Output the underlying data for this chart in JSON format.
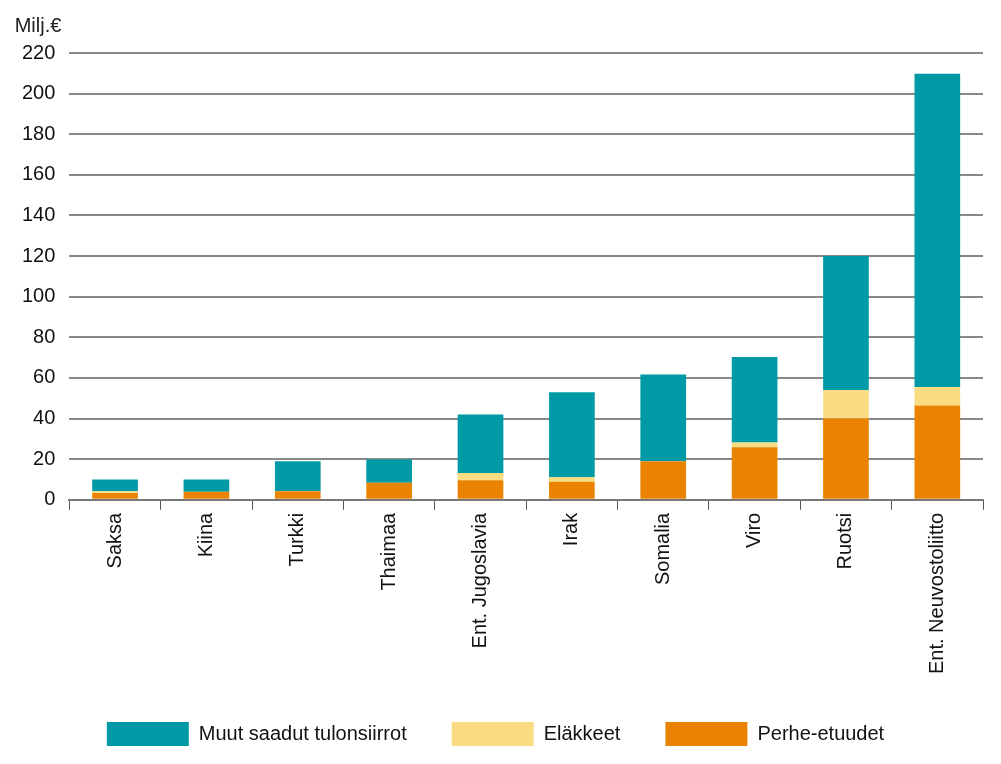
{
  "chart_data": {
    "type": "bar",
    "ylabel": "Milj.€",
    "categories": [
      "Saksa",
      "Kiina",
      "Turkki",
      "Thaimaa",
      "Ent. Jugoslavia",
      "Irak",
      "Somalia",
      "Viro",
      "Ruotsi",
      "Ent. Neuvostoliitto"
    ],
    "series": [
      {
        "name": "Perhe-etuudet",
        "color": "#e98300",
        "values": [
          3.4,
          4,
          4.2,
          8.4,
          9.6,
          8.9,
          19,
          25.9,
          40,
          46.4
        ]
      },
      {
        "name": "Eläkkeet",
        "color": "#fadc82",
        "values": [
          0.8,
          0,
          0,
          0,
          3.6,
          2.2,
          0,
          2.3,
          14.1,
          9.1
        ]
      },
      {
        "name": "Muut saadut tulonsiirrot",
        "color": "#009aa6",
        "values": [
          5.8,
          6,
          14.8,
          11.5,
          28.8,
          41.9,
          42.7,
          42.1,
          65.9,
          154.3
        ]
      }
    ],
    "stacked": true,
    "ylim": [
      0,
      220
    ],
    "yticks": [
      0,
      20,
      40,
      60,
      80,
      100,
      120,
      140,
      160,
      180,
      200,
      220
    ],
    "grid": "y",
    "legend": "bottom"
  }
}
